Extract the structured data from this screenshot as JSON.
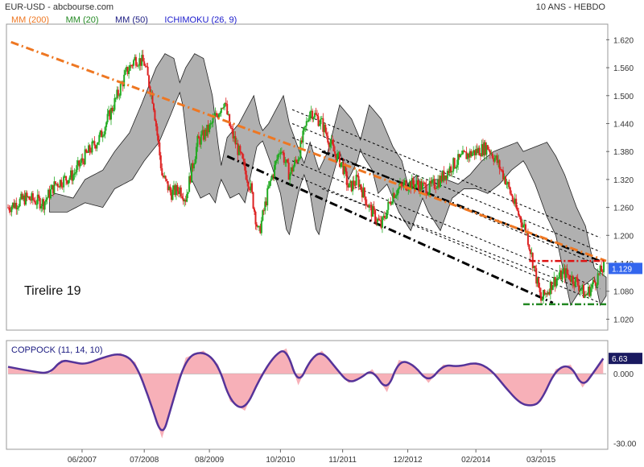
{
  "header": {
    "symbol_source": "EUR-USD - abcbourse.com",
    "period": "10 ANS - HEBDO"
  },
  "legend": [
    {
      "label": "MM (200)",
      "color": "#ee7722"
    },
    {
      "label": "MM (20)",
      "color": "#228822"
    },
    {
      "label": "MM (50)",
      "color": "#1a1a80"
    },
    {
      "label": "ICHIMOKU (26, 9)",
      "color": "#1a1acc"
    }
  ],
  "annotation": "Tirelire 19",
  "chart_data": [
    {
      "type": "line",
      "title": "",
      "price_ticks": [
        "1.620",
        "1.560",
        "1.500",
        "1.440",
        "1.380",
        "1.320",
        "1.260",
        "1.200",
        "1.140",
        "1.080",
        "1.020"
      ],
      "price_tick_values": [
        1.62,
        1.56,
        1.5,
        1.44,
        1.38,
        1.32,
        1.26,
        1.2,
        1.14,
        1.08,
        1.02
      ],
      "ylim": [
        1.0,
        1.65
      ],
      "last_price_label": "1.129",
      "last_price": 1.129,
      "x_ticks": [
        "06/2007",
        "07/2008",
        "08/2009",
        "10/2010",
        "11/2011",
        "12/2012",
        "02/2014",
        "03/2015"
      ],
      "x_tick_years": [
        2007.45,
        2008.5,
        2009.6,
        2010.8,
        2011.85,
        2012.95,
        2014.1,
        2015.2
      ],
      "xlim": [
        2006.2,
        2016.3
      ],
      "series": [
        {
          "name": "EUR-USD",
          "points": [
            [
              2006.2,
              1.26
            ],
            [
              2006.5,
              1.28
            ],
            [
              2006.8,
              1.27
            ],
            [
              2007.0,
              1.31
            ],
            [
              2007.3,
              1.33
            ],
            [
              2007.5,
              1.37
            ],
            [
              2007.75,
              1.41
            ],
            [
              2007.95,
              1.47
            ],
            [
              2008.2,
              1.55
            ],
            [
              2008.35,
              1.58
            ],
            [
              2008.5,
              1.57
            ],
            [
              2008.65,
              1.49
            ],
            [
              2008.8,
              1.33
            ],
            [
              2008.95,
              1.29
            ],
            [
              2009.1,
              1.3
            ],
            [
              2009.2,
              1.28
            ],
            [
              2009.4,
              1.4
            ],
            [
              2009.6,
              1.43
            ],
            [
              2009.85,
              1.49
            ],
            [
              2009.95,
              1.43
            ],
            [
              2010.15,
              1.36
            ],
            [
              2010.3,
              1.3
            ],
            [
              2010.43,
              1.2
            ],
            [
              2010.6,
              1.3
            ],
            [
              2010.8,
              1.39
            ],
            [
              2010.95,
              1.33
            ],
            [
              2011.1,
              1.37
            ],
            [
              2011.3,
              1.47
            ],
            [
              2011.5,
              1.44
            ],
            [
              2011.7,
              1.38
            ],
            [
              2011.85,
              1.35
            ],
            [
              2011.95,
              1.3
            ],
            [
              2012.1,
              1.32
            ],
            [
              2012.3,
              1.26
            ],
            [
              2012.5,
              1.22
            ],
            [
              2012.7,
              1.29
            ],
            [
              2012.9,
              1.31
            ],
            [
              2013.1,
              1.31
            ],
            [
              2013.3,
              1.3
            ],
            [
              2013.5,
              1.32
            ],
            [
              2013.7,
              1.35
            ],
            [
              2013.9,
              1.37
            ],
            [
              2014.1,
              1.38
            ],
            [
              2014.3,
              1.39
            ],
            [
              2014.45,
              1.36
            ],
            [
              2014.6,
              1.32
            ],
            [
              2014.8,
              1.25
            ],
            [
              2014.95,
              1.21
            ],
            [
              2015.1,
              1.12
            ],
            [
              2015.2,
              1.06
            ],
            [
              2015.4,
              1.1
            ],
            [
              2015.6,
              1.12
            ],
            [
              2015.8,
              1.1
            ],
            [
              2015.95,
              1.07
            ],
            [
              2016.1,
              1.1
            ],
            [
              2016.25,
              1.13
            ]
          ]
        },
        {
          "name": "MM (200)",
          "points": [
            [
              2006.25,
              1.615
            ],
            [
              2016.3,
              1.145
            ]
          ]
        }
      ]
    },
    {
      "type": "area",
      "title": "COPPOCK (11, 14, 10)",
      "y_ticks": [
        "0.000",
        "-30.00"
      ],
      "y_tick_values": [
        0,
        -30
      ],
      "ylim": [
        -32,
        14
      ],
      "last_value_label": "6.63",
      "last_value": 6.63,
      "x": [
        2006.2,
        2006.6,
        2006.9,
        2007.1,
        2007.3,
        2007.5,
        2007.8,
        2008.1,
        2008.35,
        2008.6,
        2008.8,
        2008.95,
        2009.2,
        2009.5,
        2009.75,
        2009.95,
        2010.2,
        2010.45,
        2010.7,
        2010.9,
        2011.1,
        2011.3,
        2011.5,
        2011.75,
        2011.95,
        2012.15,
        2012.35,
        2012.6,
        2012.8,
        2013.05,
        2013.3,
        2013.55,
        2013.8,
        2014.1,
        2014.35,
        2014.6,
        2014.85,
        2015.05,
        2015.2,
        2015.45,
        2015.7,
        2015.9,
        2016.1,
        2016.25
      ],
      "values": [
        3,
        1,
        0,
        6,
        5,
        4,
        7,
        9,
        5,
        -12,
        -28,
        -15,
        7,
        10,
        4,
        -12,
        -16,
        -2,
        8,
        11,
        -5,
        6,
        10,
        2,
        -4,
        -2,
        2,
        -8,
        6,
        4,
        -4,
        4,
        3,
        5,
        2,
        -6,
        -13,
        -14,
        -12,
        2,
        4,
        -6,
        1,
        6.6
      ]
    }
  ]
}
